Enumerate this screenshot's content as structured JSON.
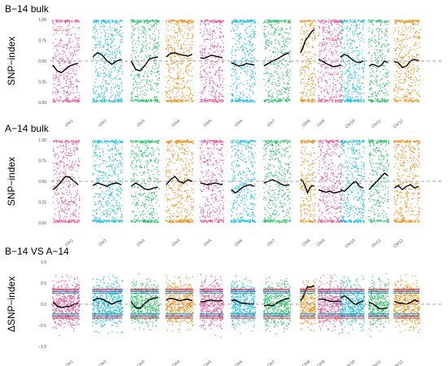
{
  "colors": {
    "chromosomes": [
      "#e9589a",
      "#19bde0",
      "#2fc06a",
      "#ee8f16",
      "#e9589a",
      "#19bde0",
      "#2fc06a",
      "#ee8f16",
      "#e9589a",
      "#19bde0",
      "#2fc06a",
      "#ee8f16"
    ],
    "trend": "#000000",
    "reference_line": "#7f7f7f",
    "threshold_red": "#e8413a",
    "threshold_purple": "#7b3fa0",
    "threshold_blue": "#3f61b0",
    "threshold_teal": "#1fa2a0"
  },
  "chart_data": [
    {
      "type": "scatter",
      "title": "B−14 bulk",
      "ylabel": "SNP−index",
      "ylim": [
        0,
        1
      ],
      "yticks": [
        "0.00",
        "0.25",
        "0.50",
        "0.75",
        "1.00"
      ],
      "categories": [
        "Chr1",
        "Chr2",
        "Chr3",
        "Chr4",
        "Chr5",
        "Chr6",
        "Chr7",
        "Chr8",
        "Chr9",
        "Chr10",
        "Chr11",
        "Chr12"
      ],
      "reference_line": 0.5,
      "series": [
        {
          "values": [
            0.45,
            0.38,
            0.36,
            0.4,
            0.44,
            0.46,
            0.47
          ]
        },
        {
          "values": [
            0.55,
            0.6,
            0.57,
            0.5,
            0.46,
            0.5,
            0.52
          ]
        },
        {
          "values": [
            0.5,
            0.4,
            0.38,
            0.44,
            0.52,
            0.54,
            0.55
          ]
        },
        {
          "values": [
            0.55,
            0.59,
            0.6,
            0.58,
            0.57,
            0.56,
            0.58
          ]
        },
        {
          "values": [
            0.54,
            0.53,
            0.55,
            0.57,
            0.56,
            0.55,
            0.54
          ]
        },
        {
          "values": [
            0.48,
            0.46,
            0.44,
            0.45,
            0.47,
            0.46,
            0.45
          ]
        },
        {
          "values": [
            0.44,
            0.47,
            0.5,
            0.52,
            0.55,
            0.58,
            0.6
          ]
        },
        {
          "values": [
            0.6,
            0.66,
            0.74,
            0.78,
            0.82,
            0.86,
            0.88
          ]
        },
        {
          "values": [
            0.52,
            0.5,
            0.47,
            0.45,
            0.43,
            0.44,
            0.45
          ]
        },
        {
          "values": [
            0.55,
            0.58,
            0.56,
            0.52,
            0.49,
            0.48,
            0.5
          ]
        },
        {
          "values": [
            0.44,
            0.46,
            0.45,
            0.43,
            0.45,
            0.5,
            0.48
          ]
        },
        {
          "values": [
            0.49,
            0.48,
            0.42,
            0.44,
            0.5,
            0.52,
            0.5
          ]
        }
      ]
    },
    {
      "type": "scatter",
      "title": "A−14 bulk",
      "ylabel": "SNP−index",
      "ylim": [
        0,
        1
      ],
      "yticks": [
        "0.00",
        "0.25",
        "0.50",
        "0.75",
        "1.00"
      ],
      "categories": [
        "Chr1",
        "Chr2",
        "Chr3",
        "Chr4",
        "Chr5",
        "Chr6",
        "Chr7",
        "Chr8",
        "Chr9",
        "Chr10",
        "Chr11",
        "Chr12"
      ],
      "reference_line": 0.5,
      "series": [
        {
          "values": [
            0.4,
            0.44,
            0.5,
            0.56,
            0.55,
            0.5,
            0.46
          ]
        },
        {
          "values": [
            0.45,
            0.48,
            0.46,
            0.44,
            0.47,
            0.48,
            0.46
          ]
        },
        {
          "values": [
            0.44,
            0.48,
            0.45,
            0.41,
            0.4,
            0.42,
            0.43
          ]
        },
        {
          "values": [
            0.46,
            0.52,
            0.56,
            0.5,
            0.48,
            0.52,
            0.5
          ]
        },
        {
          "values": [
            0.48,
            0.47,
            0.46,
            0.47,
            0.48,
            0.47,
            0.46
          ]
        },
        {
          "values": [
            0.4,
            0.36,
            0.39,
            0.43,
            0.45,
            0.46,
            0.44
          ]
        },
        {
          "values": [
            0.48,
            0.5,
            0.52,
            0.5,
            0.47,
            0.45,
            0.46
          ]
        },
        {
          "values": [
            0.52,
            0.5,
            0.44,
            0.36,
            0.42,
            0.45,
            0.44
          ]
        },
        {
          "values": [
            0.4,
            0.38,
            0.37,
            0.38,
            0.36,
            0.37,
            0.38
          ]
        },
        {
          "values": [
            0.4,
            0.38,
            0.42,
            0.47,
            0.5,
            0.44,
            0.42
          ]
        },
        {
          "values": [
            0.4,
            0.44,
            0.48,
            0.52,
            0.56,
            0.6,
            0.57
          ]
        },
        {
          "values": [
            0.42,
            0.45,
            0.4,
            0.44,
            0.46,
            0.42,
            0.44
          ]
        }
      ]
    },
    {
      "type": "scatter",
      "title": "B−14 VS A−14",
      "ylabel": "ΔSNP−index",
      "ylim": [
        -1,
        1
      ],
      "yticks": [
        "−1.0",
        "−0.5",
        "0.0",
        "0.5",
        "1.0"
      ],
      "categories": [
        "Chr1",
        "Chr2",
        "Chr3",
        "Chr4",
        "Chr5",
        "Chr6",
        "Chr7",
        "Chr8",
        "Chr9",
        "Chr10",
        "Chr11",
        "Chr12"
      ],
      "reference_line": 0,
      "thresholds": [
        0.36,
        0.33,
        0.3,
        0.26,
        -0.22,
        -0.26,
        -0.3,
        -0.34
      ],
      "series": [
        {
          "values": [
            0.05,
            -0.04,
            -0.08,
            -0.06,
            -0.05,
            0.0,
            0.02
          ]
        },
        {
          "values": [
            0.08,
            0.14,
            0.12,
            0.06,
            0.0,
            0.06,
            0.08
          ]
        },
        {
          "values": [
            0.06,
            -0.08,
            -0.1,
            0.02,
            0.1,
            0.14,
            0.16
          ]
        },
        {
          "values": [
            0.1,
            0.14,
            0.12,
            0.08,
            0.1,
            0.12,
            0.08
          ]
        },
        {
          "values": [
            0.06,
            0.06,
            0.09,
            0.1,
            0.08,
            0.08,
            0.08
          ]
        },
        {
          "values": [
            0.08,
            0.1,
            0.05,
            0.02,
            0.02,
            0.0,
            0.01
          ]
        },
        {
          "values": [
            -0.04,
            -0.02,
            -0.04,
            0.02,
            0.08,
            0.12,
            0.14
          ]
        },
        {
          "values": [
            0.08,
            0.16,
            0.3,
            0.42,
            0.4,
            0.42,
            0.44
          ]
        },
        {
          "values": [
            0.12,
            0.12,
            0.1,
            0.07,
            0.07,
            0.07,
            0.07
          ]
        },
        {
          "values": [
            0.15,
            0.2,
            0.14,
            0.05,
            -0.01,
            0.04,
            0.08
          ]
        },
        {
          "values": [
            0.04,
            0.02,
            -0.03,
            -0.09,
            -0.11,
            -0.1,
            -0.09
          ]
        },
        {
          "values": [
            0.07,
            0.03,
            0.02,
            0.0,
            0.04,
            0.1,
            0.06
          ]
        }
      ]
    }
  ]
}
